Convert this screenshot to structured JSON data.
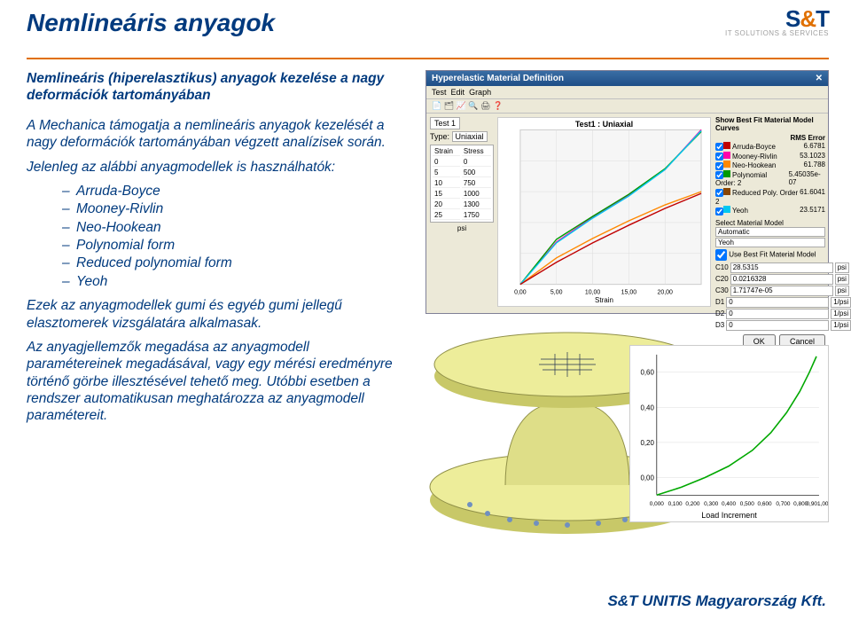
{
  "header": {
    "title": "Nemlineáris anyagok",
    "logo_main_a": "S",
    "logo_main_amp": "&",
    "logo_main_b": "T",
    "logo_sub": "IT SOLUTIONS & SERVICES"
  },
  "left": {
    "subtitle": "Nemlineáris (hiperelasztikus) anyagok kezelése a nagy deformációk tartományában",
    "p1": "A Mechanica támogatja a nemlineáris anyagok kezelését a nagy deformációk tartományában végzett analízisek során.",
    "p2": "Jelenleg az alábbi anyagmodellek is használhatók:",
    "models": [
      "Arruda-Boyce",
      "Mooney-Rivlin",
      "Neo-Hookean",
      "Polynomial form",
      "Reduced polynomial form",
      "Yeoh"
    ],
    "p3": "Ezek az anyagmodellek gumi és egyéb gumi jellegű elasztomerek vizsgálatára alkalmasak.",
    "p4": "Az anyagjellemzők megadása az anyagmodell paramétereinek megadásával, vagy egy mérési eredményre történő görbe illesztésével tehető meg. Utóbbi esetben a rendszer automatikusan meghatározza az anyagmodell paramétereit."
  },
  "dialog": {
    "title": "Hyperelastic Material Definition",
    "close": "✕",
    "menu": [
      "Test",
      "Edit",
      "Graph"
    ],
    "tools": "📄 🗂 📈 🔍 🖨 ❓",
    "tab": "Test 1",
    "type_lbl": "Type:",
    "type_val": "Uniaxial",
    "col_strain": "Strain",
    "col_stress": "Stress",
    "rows": [
      [
        "0",
        "0"
      ],
      [
        "5",
        "500"
      ],
      [
        "10",
        "750"
      ],
      [
        "15",
        "1000"
      ],
      [
        "20",
        "1300"
      ],
      [
        "25",
        "1750"
      ]
    ],
    "chart": {
      "title": "Test1 : Uniaxial",
      "xaxis": "Strain",
      "xticks": [
        "0,00",
        "5,00",
        "10,00",
        "15,00",
        "20,00"
      ],
      "curves": {
        "bg": "#f6f6f6",
        "mooney": {
          "color": "#ff00aa",
          "pts": [
            [
              0,
              0
            ],
            [
              5,
              480
            ],
            [
              10,
              760
            ],
            [
              15,
              1010
            ],
            [
              20,
              1300
            ],
            [
              25,
              1760
            ]
          ]
        },
        "neo": {
          "color": "#ff8800",
          "pts": [
            [
              0,
              0
            ],
            [
              5,
              300
            ],
            [
              10,
              520
            ],
            [
              15,
              720
            ],
            [
              20,
              900
            ],
            [
              25,
              1060
            ]
          ]
        },
        "poly": {
          "color": "#009a00",
          "pts": [
            [
              0,
              0
            ],
            [
              5,
              510
            ],
            [
              10,
              770
            ],
            [
              15,
              1020
            ],
            [
              20,
              1310
            ],
            [
              25,
              1740
            ]
          ]
        },
        "yeoh": {
          "color": "#00c8f0",
          "pts": [
            [
              0,
              0
            ],
            [
              5,
              470
            ],
            [
              10,
              750
            ],
            [
              15,
              1000
            ],
            [
              20,
              1300
            ],
            [
              25,
              1750
            ]
          ]
        },
        "arruda": {
          "color": "#c00000",
          "pts": [
            [
              0,
              0
            ],
            [
              5,
              250
            ],
            [
              10,
              470
            ],
            [
              15,
              670
            ],
            [
              20,
              860
            ],
            [
              25,
              1040
            ]
          ]
        }
      }
    },
    "fit_hd": "Show Best Fit Material Model Curves",
    "rms_hd": "RMS Error",
    "rms": [
      {
        "n": "Arruda-Boyce",
        "v": "6.6781",
        "c": "#c00000"
      },
      {
        "n": "Mooney-Rivlin",
        "v": "53.1023",
        "c": "#ff00aa"
      },
      {
        "n": "Neo-Hookean",
        "v": "61.788",
        "c": "#ff8800"
      },
      {
        "n": "Polynomial Order: 2",
        "v": "5.45035e-07",
        "c": "#009a00"
      },
      {
        "n": "Reduced Poly. Order 2",
        "v": "61.6041",
        "c": "#884400"
      },
      {
        "n": "Yeoh",
        "v": "23.5171",
        "c": "#00c8f0"
      }
    ],
    "sel_lbl": "Select Material Model",
    "sel_val": "Automatic",
    "sel_val2": "Yeoh",
    "bestfit_lbl": "Use Best Fit Material Model",
    "coeff": [
      {
        "k": "C10",
        "v": "28.5315",
        "u": "psi"
      },
      {
        "k": "C20",
        "v": "0.0216328",
        "u": "psi"
      },
      {
        "k": "C30",
        "v": "1.71747e-05",
        "u": "psi"
      },
      {
        "k": "D1",
        "v": "0",
        "u": "1/psi"
      },
      {
        "k": "D2",
        "v": "0",
        "u": "1/psi"
      },
      {
        "k": "D3",
        "v": "0",
        "u": "1/psi"
      }
    ],
    "ok": "OK",
    "cancel": "Cancel"
  },
  "part": {
    "top": "#eded9a",
    "side": "#c8c868",
    "rim": "#909048"
  },
  "mini": {
    "xaxis": "Load Increment",
    "yticks": [
      "0,60",
      "0,40",
      "0,20",
      "0,00"
    ],
    "xticks": [
      "0,000",
      "0,100",
      "0,200",
      "0,300",
      "0,400",
      "0,500",
      "0,600",
      "0,700",
      "0,800",
      "0,901,00"
    ],
    "curve_color": "#00a800",
    "pts": [
      [
        0,
        0
      ],
      [
        0.15,
        0.04
      ],
      [
        0.3,
        0.09
      ],
      [
        0.45,
        0.15
      ],
      [
        0.6,
        0.23
      ],
      [
        0.72,
        0.32
      ],
      [
        0.82,
        0.42
      ],
      [
        0.9,
        0.53
      ],
      [
        0.96,
        0.63
      ],
      [
        1.0,
        0.71
      ]
    ]
  },
  "footer": "S&T UNITIS Magyarország Kft."
}
